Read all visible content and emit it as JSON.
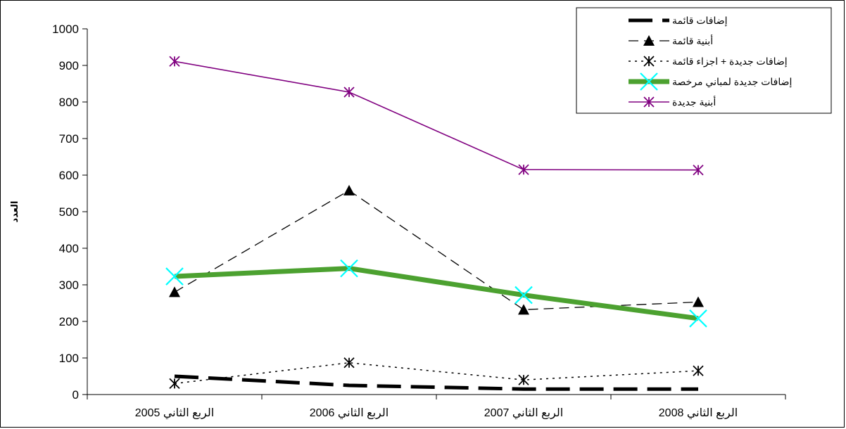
{
  "chart_data": {
    "type": "line",
    "title": "",
    "xlabel": "",
    "ylabel": "العدد",
    "ylim": [
      0,
      1000
    ],
    "yticks": [
      0,
      100,
      200,
      300,
      400,
      500,
      600,
      700,
      800,
      900,
      1000
    ],
    "grid": false,
    "legend_position": "top-right",
    "categories": [
      "الربع الثاني 2005",
      "الربع الثاني 2006",
      "الربع الثاني 2007",
      "الربع الثاني 2008"
    ],
    "series": [
      {
        "name": "إضافات قائمة",
        "values": [
          50,
          25,
          15,
          15
        ],
        "color": "#000000",
        "style": "longdash",
        "marker": "none"
      },
      {
        "name": "أبنية قائمة",
        "values": [
          280,
          558,
          232,
          253
        ],
        "color": "#000000",
        "style": "dash",
        "marker": "triangle"
      },
      {
        "name": "إضافات جديدة + اجزاء قائمة",
        "values": [
          30,
          87,
          40,
          65
        ],
        "color": "#000000",
        "style": "dot",
        "marker": "asterisk"
      },
      {
        "name": "إضافات جديدة لمباني مرخصة",
        "values": [
          323,
          345,
          272,
          208
        ],
        "color": "#4ca130",
        "marker_color": "#00ffff",
        "style": "thick",
        "marker": "x"
      },
      {
        "name": "أبنية  جديدة",
        "values": [
          911,
          827,
          615,
          614
        ],
        "color": "#800080",
        "style": "solid",
        "marker": "asterisk"
      }
    ]
  }
}
